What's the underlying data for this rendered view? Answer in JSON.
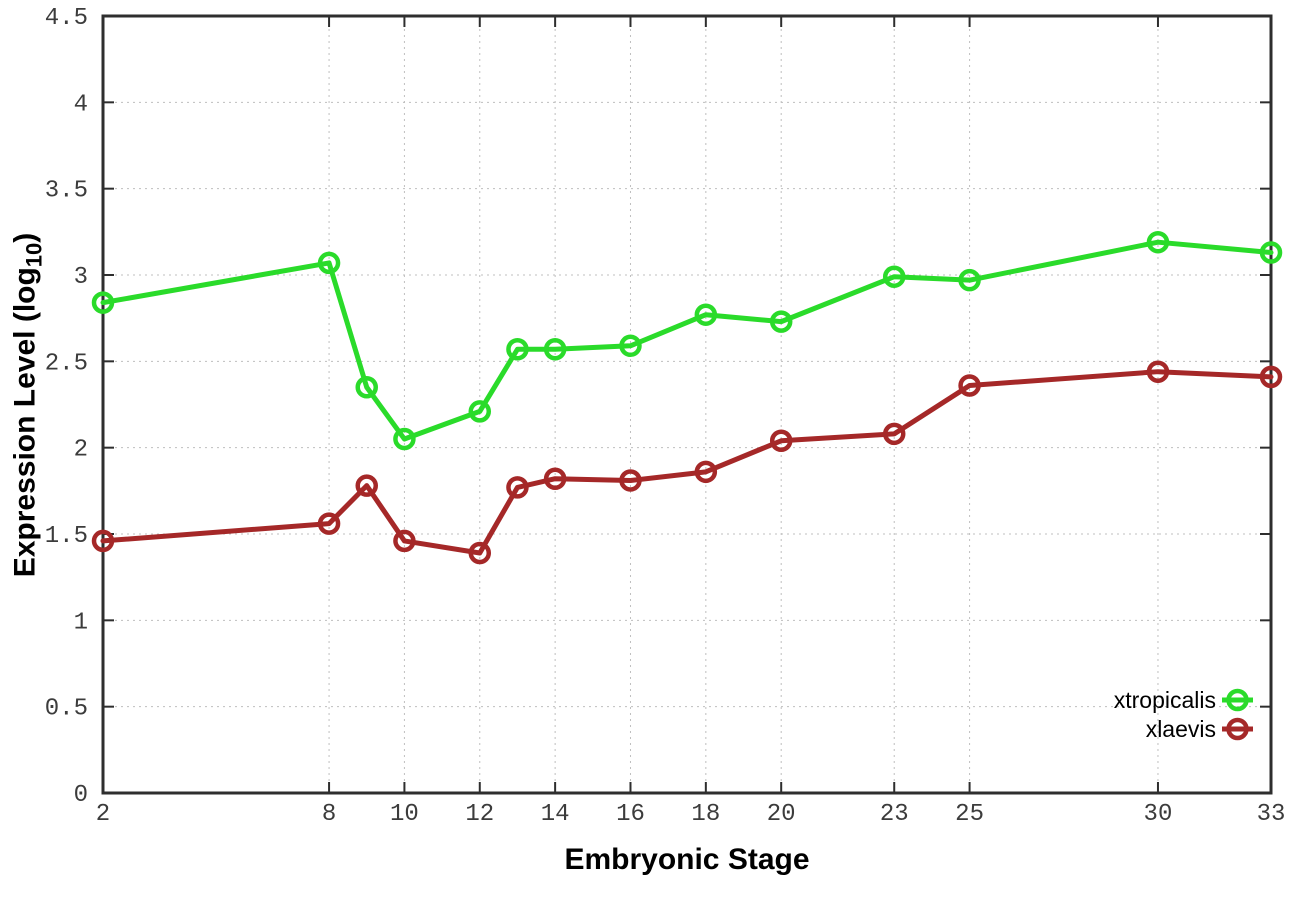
{
  "chart_data": {
    "type": "line",
    "title": "",
    "xlabel": "Embryonic Stage",
    "ylabel": {
      "main": "Expression Level (log",
      "sub": "10",
      "end": ")"
    },
    "xlim": [
      2,
      33
    ],
    "ylim": [
      0,
      4.5
    ],
    "grid": true,
    "legend_position": "inside bottom-right",
    "xticks": [
      2,
      8,
      10,
      12,
      14,
      16,
      18,
      20,
      23,
      25,
      30,
      33
    ],
    "xtick_labels": [
      "2",
      "8",
      "10",
      "12",
      "14",
      "16",
      "18",
      "20",
      "23",
      "25",
      "30",
      "33"
    ],
    "yticks": [
      0,
      0.5,
      1,
      1.5,
      2,
      2.5,
      3,
      3.5,
      4,
      4.5
    ],
    "ytick_labels": [
      "0",
      "0.5",
      "1",
      "1.5",
      "2",
      "2.5",
      "3",
      "3.5",
      "4",
      "4.5"
    ],
    "x": [
      2,
      8,
      9,
      10,
      12,
      13,
      14,
      16,
      18,
      20,
      23,
      25,
      30,
      33
    ],
    "series": [
      {
        "name": "xtropicalis",
        "color": "#2adb2a",
        "values": [
          2.84,
          3.07,
          2.35,
          2.05,
          2.21,
          2.57,
          2.57,
          2.59,
          2.77,
          2.73,
          2.99,
          2.97,
          3.19,
          3.13
        ]
      },
      {
        "name": "xlaevis",
        "color": "#a52828",
        "values": [
          1.46,
          1.56,
          1.78,
          1.46,
          1.39,
          1.77,
          1.82,
          1.81,
          1.86,
          2.04,
          2.08,
          2.36,
          2.44,
          2.41
        ]
      }
    ]
  }
}
